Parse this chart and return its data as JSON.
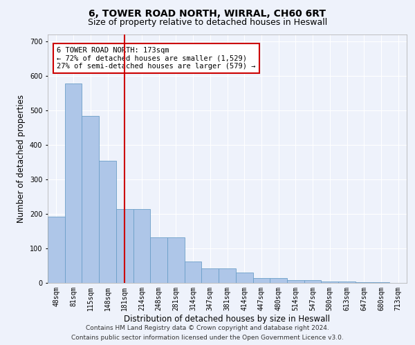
{
  "title": "6, TOWER ROAD NORTH, WIRRAL, CH60 6RT",
  "subtitle": "Size of property relative to detached houses in Heswall",
  "xlabel": "Distribution of detached houses by size in Heswall",
  "ylabel": "Number of detached properties",
  "categories": [
    "48sqm",
    "81sqm",
    "115sqm",
    "148sqm",
    "181sqm",
    "214sqm",
    "248sqm",
    "281sqm",
    "314sqm",
    "347sqm",
    "381sqm",
    "414sqm",
    "447sqm",
    "480sqm",
    "514sqm",
    "547sqm",
    "580sqm",
    "613sqm",
    "647sqm",
    "680sqm",
    "713sqm"
  ],
  "values": [
    193,
    578,
    485,
    355,
    215,
    215,
    132,
    132,
    63,
    42,
    42,
    30,
    15,
    15,
    8,
    8,
    5,
    5,
    2,
    2,
    0
  ],
  "bar_color": "#aec6e8",
  "bar_edge_color": "#6b9fc8",
  "vline_x": 4,
  "vline_color": "#cc0000",
  "annotation_text": "6 TOWER ROAD NORTH: 173sqm\n← 72% of detached houses are smaller (1,529)\n27% of semi-detached houses are larger (579) →",
  "annotation_box_color": "#ffffff",
  "annotation_box_edge": "#cc0000",
  "ylim": [
    0,
    720
  ],
  "yticks": [
    0,
    100,
    200,
    300,
    400,
    500,
    600,
    700
  ],
  "footer_line1": "Contains HM Land Registry data © Crown copyright and database right 2024.",
  "footer_line2": "Contains public sector information licensed under the Open Government Licence v3.0.",
  "background_color": "#eef2fb",
  "plot_background": "#eef2fb",
  "grid_color": "#ffffff",
  "title_fontsize": 10,
  "subtitle_fontsize": 9,
  "axis_label_fontsize": 8.5,
  "tick_fontsize": 7,
  "footer_fontsize": 6.5,
  "annot_fontsize": 7.5
}
